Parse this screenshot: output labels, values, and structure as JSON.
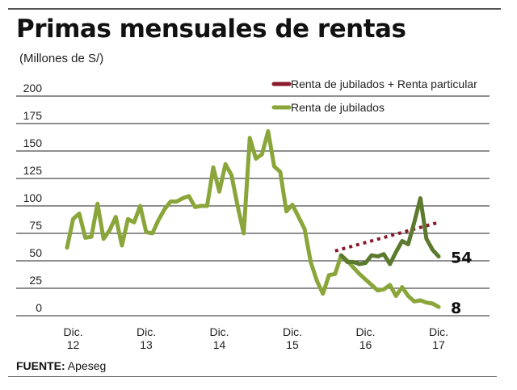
{
  "header": {
    "title": "Primas mensuales de rentas",
    "subtitle": "(Millones de S/)"
  },
  "source": {
    "label": "FUENTE:",
    "value": "Apeseg"
  },
  "colors": {
    "renta_jubilados": "#8aa63a",
    "renta_jubilados_particular_line": "#5c7a2e",
    "trend_dotted": "#8b1a2b",
    "gridline": "#222222"
  },
  "chart_data": {
    "type": "line",
    "title": "Primas mensuales de rentas",
    "subtitle": "(Millones de S/)",
    "xlabel": "",
    "ylabel": "Millones de S/",
    "ylim": [
      0,
      200
    ],
    "yticks": [
      0,
      25,
      50,
      75,
      100,
      125,
      150,
      175,
      200
    ],
    "grid": true,
    "legend_position": "top-right",
    "x_tick_labels": [
      {
        "line1": "Dic.",
        "line2": "12",
        "index": 1
      },
      {
        "line1": "Dic.",
        "line2": "13",
        "index": 13
      },
      {
        "line1": "Dic.",
        "line2": "14",
        "index": 25
      },
      {
        "line1": "Dic.",
        "line2": "15",
        "index": 37
      },
      {
        "line1": "Dic.",
        "line2": "16",
        "index": 49
      },
      {
        "line1": "Dic.",
        "line2": "17",
        "index": 61
      }
    ],
    "x_range": [
      0,
      61
    ],
    "legend": [
      {
        "label": "Renta de jubilados + Renta particular",
        "color": "#8b1a2b"
      },
      {
        "label": "Renta de jubilados",
        "color": "#8aa63a"
      }
    ],
    "series": [
      {
        "name": "Renta de jubilados",
        "color": "#8aa63a",
        "x": [
          0,
          1,
          2,
          3,
          4,
          5,
          6,
          7,
          8,
          9,
          10,
          11,
          12,
          13,
          14,
          15,
          16,
          17,
          18,
          19,
          20,
          21,
          22,
          23,
          24,
          25,
          26,
          27,
          28,
          29,
          30,
          31,
          32,
          33,
          34,
          35,
          36,
          37,
          38,
          39,
          40,
          41,
          42,
          43,
          44,
          45,
          46,
          47,
          48,
          49,
          50,
          51,
          52,
          53,
          54,
          55,
          56,
          57,
          58,
          59,
          60,
          61
        ],
        "values": [
          62,
          88,
          93,
          71,
          72,
          102,
          70,
          78,
          90,
          64,
          88,
          85,
          100,
          76,
          75,
          87,
          97,
          104,
          104,
          107,
          109,
          99,
          100,
          100,
          135,
          113,
          138,
          128,
          100,
          75,
          162,
          143,
          147,
          168,
          136,
          131,
          95,
          101,
          90,
          79,
          49,
          32,
          20,
          37,
          38,
          55,
          50,
          44,
          38,
          33,
          28,
          23,
          24,
          28,
          18,
          26,
          18,
          13,
          14,
          12,
          11,
          8
        ]
      },
      {
        "name": "Renta de jubilados + Renta particular",
        "color": "#5c7a2e",
        "x": [
          45,
          46,
          47,
          48,
          49,
          50,
          51,
          52,
          53,
          54,
          55,
          56,
          57,
          58,
          59,
          60,
          61
        ],
        "values": [
          55,
          49,
          49,
          47,
          48,
          55,
          54,
          56,
          47,
          58,
          68,
          65,
          85,
          107,
          70,
          60,
          54
        ]
      },
      {
        "name": "Tendencia (Renta de jubilados + Renta particular)",
        "style": "dotted",
        "color": "#8b1a2b",
        "x": [
          44,
          61
        ],
        "values": [
          59,
          85
        ]
      }
    ],
    "annotations": [
      {
        "text": "54",
        "series": "Renta de jubilados + Renta particular",
        "value": 54
      },
      {
        "text": "8",
        "series": "Renta de jubilados",
        "value": 8
      }
    ]
  }
}
